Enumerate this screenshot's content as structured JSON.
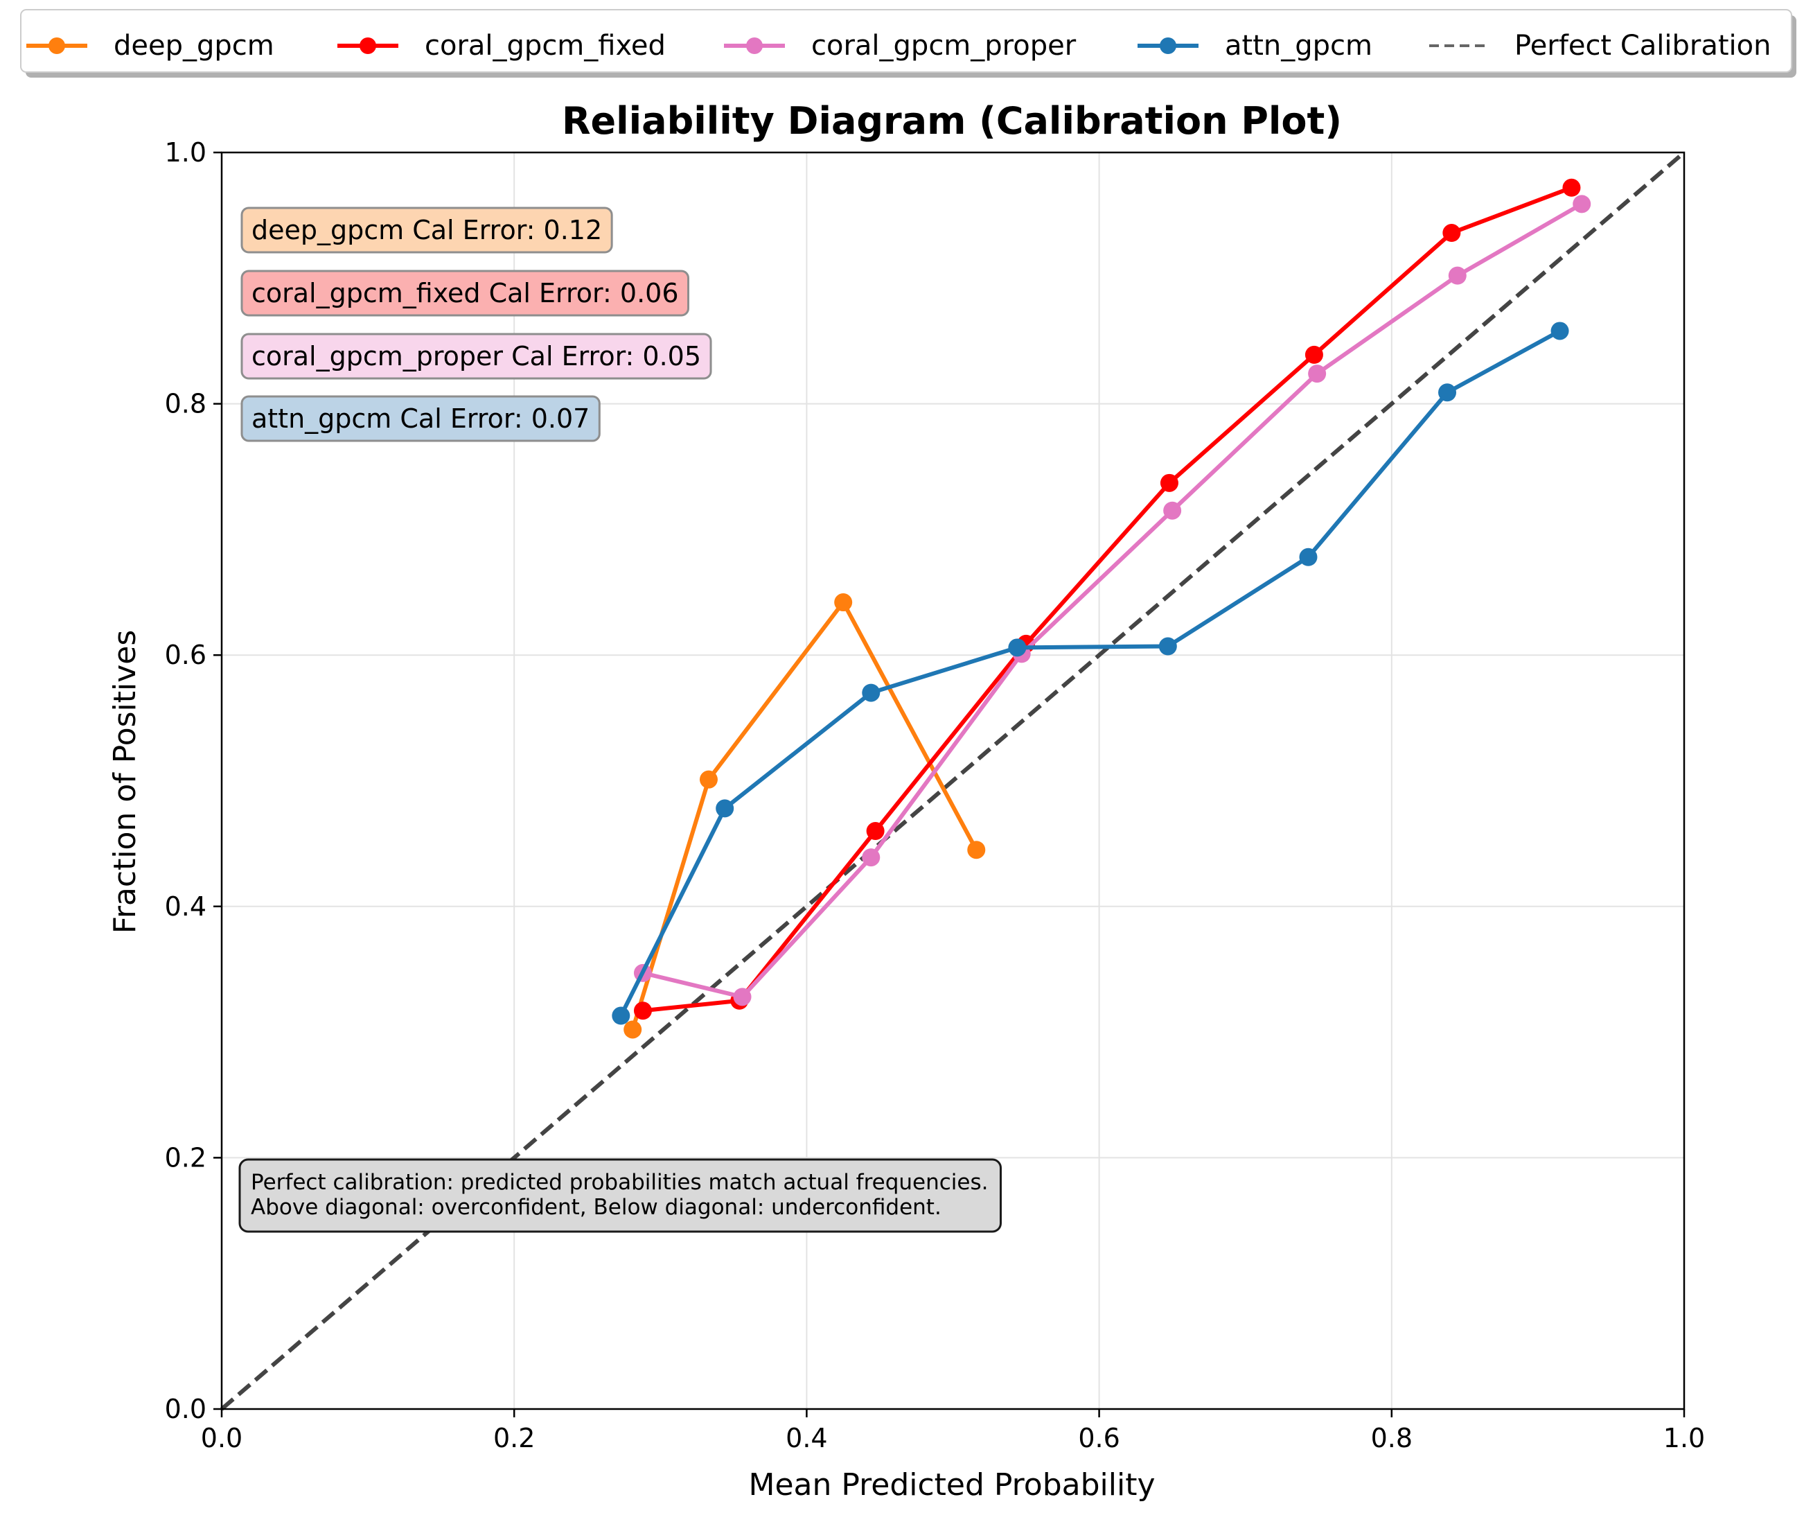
{
  "chart_data": {
    "type": "line",
    "title": "Reliability Diagram (Calibration Plot)",
    "xlabel": "Mean Predicted Probability",
    "ylabel": "Fraction of Positives",
    "xlim": [
      0,
      1
    ],
    "ylim": [
      0,
      1
    ],
    "xticks": [
      "0.0",
      "0.2",
      "0.4",
      "0.6",
      "0.8",
      "1.0"
    ],
    "yticks": [
      "0.0",
      "0.2",
      "0.4",
      "0.6",
      "0.8",
      "1.0"
    ],
    "grid": true,
    "legend_position": "top",
    "series": [
      {
        "name": "deep_gpcm",
        "color": "#ff7f0e",
        "x": [
          0.281,
          0.333,
          0.425,
          0.516
        ],
        "y": [
          0.302,
          0.501,
          0.642,
          0.445
        ]
      },
      {
        "name": "coral_gpcm_fixed",
        "color": "#ff0000",
        "x": [
          0.288,
          0.354,
          0.447,
          0.55,
          0.648,
          0.747,
          0.841,
          0.923
        ],
        "y": [
          0.317,
          0.325,
          0.46,
          0.609,
          0.737,
          0.839,
          0.936,
          0.972
        ]
      },
      {
        "name": "coral_gpcm_proper",
        "color": "#e377c2",
        "x": [
          0.288,
          0.356,
          0.444,
          0.547,
          0.65,
          0.749,
          0.845,
          0.93
        ],
        "y": [
          0.347,
          0.328,
          0.439,
          0.601,
          0.715,
          0.824,
          0.902,
          0.959
        ]
      },
      {
        "name": "attn_gpcm",
        "color": "#1f77b4",
        "x": [
          0.273,
          0.344,
          0.444,
          0.544,
          0.647,
          0.743,
          0.838,
          0.915
        ],
        "y": [
          0.313,
          0.478,
          0.57,
          0.606,
          0.607,
          0.678,
          0.809,
          0.858
        ]
      }
    ],
    "reference_line": {
      "name": "Perfect Calibration",
      "color": "#444444",
      "style": "dashed",
      "from": [
        0,
        0
      ],
      "to": [
        1,
        1
      ]
    },
    "annotations": [
      {
        "text": "deep_gpcm Cal Error: 0.12",
        "bg": "#fdd5b1"
      },
      {
        "text": "coral_gpcm_fixed Cal Error: 0.06",
        "bg": "#fbb0b0"
      },
      {
        "text": "coral_gpcm_proper Cal Error: 0.05",
        "bg": "#f8d6ec"
      },
      {
        "text": "attn_gpcm Cal Error: 0.07",
        "bg": "#bcd3e6"
      }
    ],
    "note": {
      "lines": [
        "Perfect calibration: predicted probabilities match actual frequencies.",
        "Above diagonal: overconfident, Below diagonal: underconfident."
      ],
      "bg": "#d9d9d9"
    }
  }
}
